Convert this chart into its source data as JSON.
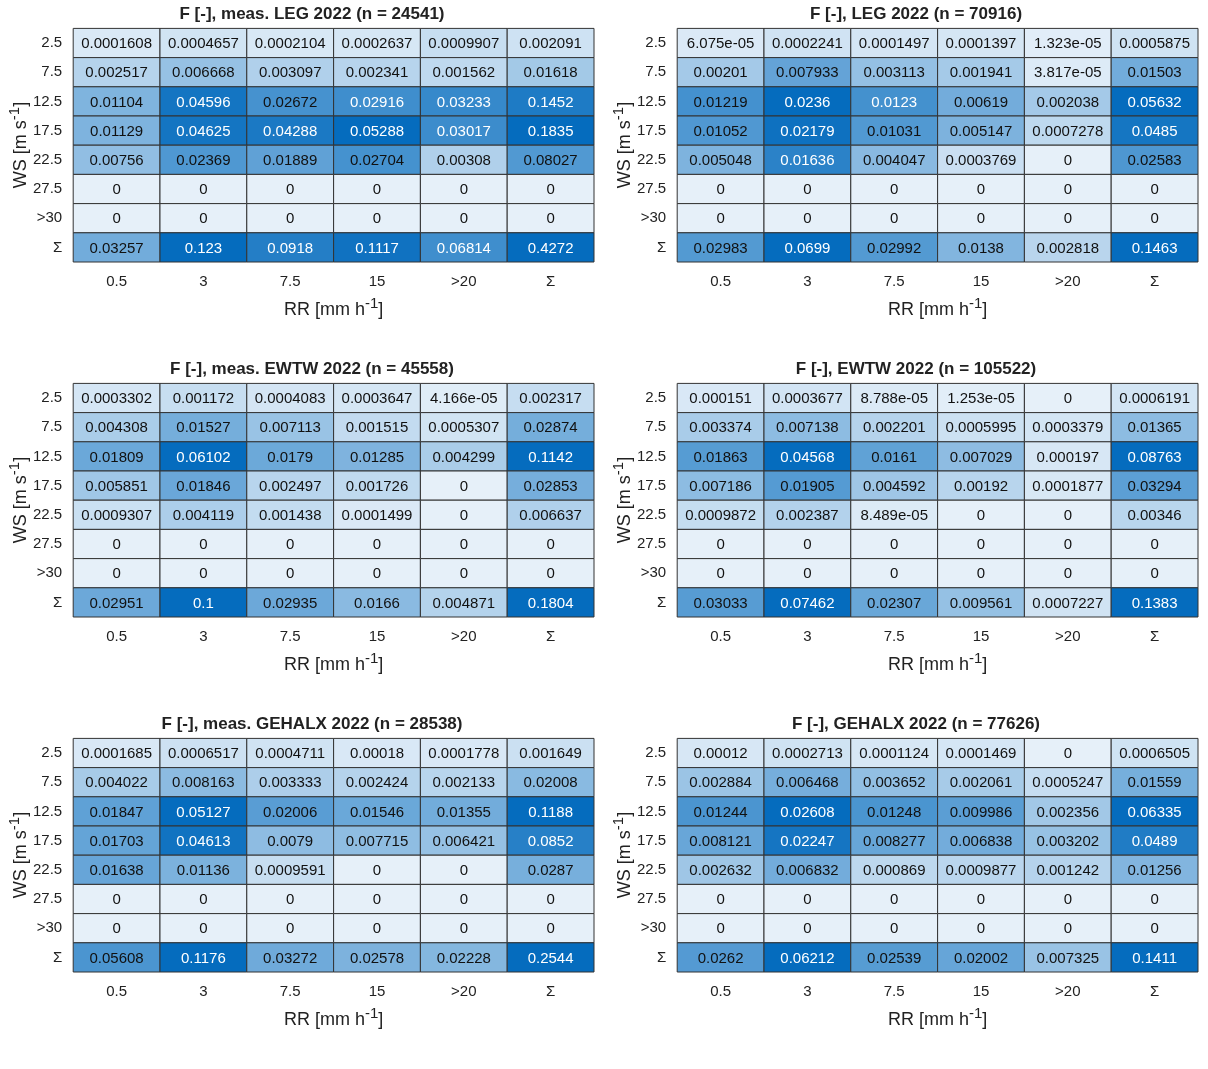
{
  "chart_data": [
    {
      "type": "heatmap",
      "title": "F [-], meas. LEG 2022 (n = 24541)",
      "xlabel": "RR [mm h$^{-1}$]",
      "ylabel": "WS [m s$^{-1}$]",
      "data_labels": true,
      "categories": [
        "0.5",
        "3",
        "7.5",
        "15",
        ">20",
        "Σ"
      ],
      "y_categories": [
        "2.5",
        "7.5",
        "12.5",
        "17.5",
        "22.5",
        "27.5",
        ">30",
        "Σ"
      ],
      "cells": [
        [
          0.0001608,
          0.0004657,
          0.0002104,
          0.0002637,
          0.0009907,
          0.002091
        ],
        [
          0.002517,
          0.006668,
          0.003097,
          0.002341,
          0.001562,
          0.01618
        ],
        [
          0.01104,
          0.04596,
          0.02672,
          0.02916,
          0.03233,
          0.1452
        ],
        [
          0.01129,
          0.04625,
          0.04288,
          0.05288,
          0.03017,
          0.1835
        ],
        [
          0.00756,
          0.02369,
          0.01889,
          0.02704,
          0.00308,
          0.08027
        ],
        [
          0,
          0,
          0,
          0,
          0,
          0
        ],
        [
          0,
          0,
          0,
          0,
          0,
          0
        ],
        [
          0.03257,
          0.123,
          0.0918,
          0.1117,
          0.06814,
          0.4272
        ]
      ]
    },
    {
      "type": "heatmap",
      "title": "F [-], LEG 2022 (n = 70916)",
      "xlabel": "RR [mm h$^{-1}$]",
      "ylabel": "WS [m s$^{-1}$]",
      "data_labels": true,
      "categories": [
        "0.5",
        "3",
        "7.5",
        "15",
        ">20",
        "Σ"
      ],
      "y_categories": [
        "2.5",
        "7.5",
        "12.5",
        "17.5",
        "22.5",
        "27.5",
        ">30",
        "Σ"
      ],
      "cells": [
        [
          6.075e-05,
          0.0002241,
          0.0001497,
          0.0001397,
          1.323e-05,
          0.0005875
        ],
        [
          0.00201,
          0.007933,
          0.003113,
          0.001941,
          3.817e-05,
          0.01503
        ],
        [
          0.01219,
          0.0236,
          0.0123,
          0.00619,
          0.002038,
          0.05632
        ],
        [
          0.01052,
          0.02179,
          0.01031,
          0.005147,
          0.0007278,
          0.0485
        ],
        [
          0.005048,
          0.01636,
          0.004047,
          0.0003769,
          0,
          0.02583
        ],
        [
          0,
          0,
          0,
          0,
          0,
          0
        ],
        [
          0,
          0,
          0,
          0,
          0,
          0
        ],
        [
          0.02983,
          0.0699,
          0.02992,
          0.0138,
          0.002818,
          0.1463
        ]
      ],
      "cell_labels": [
        [
          "6.075e-05",
          "0.0002241",
          "0.0001497",
          "0.0001397",
          "1.323e-05",
          "0.0005875"
        ],
        [
          "0.00201",
          "0.007933",
          "0.003113",
          "0.001941",
          "3.817e-05",
          "0.01503"
        ],
        [
          "0.01219",
          "0.0236",
          "0.0123",
          "0.00619",
          "0.002038",
          "0.05632"
        ],
        [
          "0.01052",
          "0.02179",
          "0.01031",
          "0.005147",
          "0.0007278",
          "0.0485"
        ],
        [
          "0.005048",
          "0.01636",
          "0.004047",
          "0.0003769",
          "0",
          "0.02583"
        ],
        [
          "0",
          "0",
          "0",
          "0",
          "0",
          "0"
        ],
        [
          "0",
          "0",
          "0",
          "0",
          "0",
          "0"
        ],
        [
          "0.02983",
          "0.0699",
          "0.02992",
          "0.0138",
          "0.002818",
          "0.1463"
        ]
      ]
    },
    {
      "type": "heatmap",
      "title": "F [-], meas. EWTW 2022 (n = 45558)",
      "xlabel": "RR [mm h$^{-1}$]",
      "ylabel": "WS [m s$^{-1}$]",
      "data_labels": true,
      "categories": [
        "0.5",
        "3",
        "7.5",
        "15",
        ">20",
        "Σ"
      ],
      "y_categories": [
        "2.5",
        "7.5",
        "12.5",
        "17.5",
        "22.5",
        "27.5",
        ">30",
        "Σ"
      ],
      "cells": [
        [
          0.0003302,
          0.001172,
          0.0004083,
          0.0003647,
          4.166e-05,
          0.002317
        ],
        [
          0.004308,
          0.01527,
          0.007113,
          0.001515,
          0.0005307,
          0.02874
        ],
        [
          0.01809,
          0.06102,
          0.0179,
          0.01285,
          0.004299,
          0.1142
        ],
        [
          0.005851,
          0.01846,
          0.002497,
          0.001726,
          0,
          0.02853
        ],
        [
          0.0009307,
          0.004119,
          0.001438,
          0.0001499,
          0,
          0.006637
        ],
        [
          0,
          0,
          0,
          0,
          0,
          0
        ],
        [
          0,
          0,
          0,
          0,
          0,
          0
        ],
        [
          0.02951,
          0.1,
          0.02935,
          0.0166,
          0.004871,
          0.1804
        ]
      ],
      "cell_labels": [
        [
          "0.0003302",
          "0.001172",
          "0.0004083",
          "0.0003647",
          "4.166e-05",
          "0.002317"
        ],
        [
          "0.004308",
          "0.01527",
          "0.007113",
          "0.001515",
          "0.0005307",
          "0.02874"
        ],
        [
          "0.01809",
          "0.06102",
          "0.0179",
          "0.01285",
          "0.004299",
          "0.1142"
        ],
        [
          "0.005851",
          "0.01846",
          "0.002497",
          "0.001726",
          "0",
          "0.02853"
        ],
        [
          "0.0009307",
          "0.004119",
          "0.001438",
          "0.0001499",
          "0",
          "0.006637"
        ],
        [
          "0",
          "0",
          "0",
          "0",
          "0",
          "0"
        ],
        [
          "0",
          "0",
          "0",
          "0",
          "0",
          "0"
        ],
        [
          "0.02951",
          "0.1",
          "0.02935",
          "0.0166",
          "0.004871",
          "0.1804"
        ]
      ]
    },
    {
      "type": "heatmap",
      "title": "F [-], EWTW 2022 (n = 105522)",
      "xlabel": "RR [mm h$^{-1}$]",
      "ylabel": "WS [m s$^{-1}$]",
      "data_labels": true,
      "categories": [
        "0.5",
        "3",
        "7.5",
        "15",
        ">20",
        "Σ"
      ],
      "y_categories": [
        "2.5",
        "7.5",
        "12.5",
        "17.5",
        "22.5",
        "27.5",
        ">30",
        "Σ"
      ],
      "cells": [
        [
          0.000151,
          0.0003677,
          8.788e-05,
          1.253e-05,
          0,
          0.0006191
        ],
        [
          0.003374,
          0.007138,
          0.002201,
          0.0005995,
          0.0003379,
          0.01365
        ],
        [
          0.01863,
          0.04568,
          0.0161,
          0.007029,
          0.000197,
          0.08763
        ],
        [
          0.007186,
          0.01905,
          0.004592,
          0.00192,
          0.0001877,
          0.03294
        ],
        [
          0.0009872,
          0.002387,
          8.489e-05,
          0,
          0,
          0.00346
        ],
        [
          0,
          0,
          0,
          0,
          0,
          0
        ],
        [
          0,
          0,
          0,
          0,
          0,
          0
        ],
        [
          0.03033,
          0.07462,
          0.02307,
          0.009561,
          0.0007227,
          0.1383
        ]
      ],
      "cell_labels": [
        [
          "0.000151",
          "0.0003677",
          "8.788e-05",
          "1.253e-05",
          "0",
          "0.0006191"
        ],
        [
          "0.003374",
          "0.007138",
          "0.002201",
          "0.0005995",
          "0.0003379",
          "0.01365"
        ],
        [
          "0.01863",
          "0.04568",
          "0.0161",
          "0.007029",
          "0.000197",
          "0.08763"
        ],
        [
          "0.007186",
          "0.01905",
          "0.004592",
          "0.00192",
          "0.0001877",
          "0.03294"
        ],
        [
          "0.0009872",
          "0.002387",
          "8.489e-05",
          "0",
          "0",
          "0.00346"
        ],
        [
          "0",
          "0",
          "0",
          "0",
          "0",
          "0"
        ],
        [
          "0",
          "0",
          "0",
          "0",
          "0",
          "0"
        ],
        [
          "0.03033",
          "0.07462",
          "0.02307",
          "0.009561",
          "0.0007227",
          "0.1383"
        ]
      ]
    },
    {
      "type": "heatmap",
      "title": "F [-], meas. GEHALX 2022 (n = 28538)",
      "xlabel": "RR [mm h$^{-1}$]",
      "ylabel": "WS [m s$^{-1}$]",
      "data_labels": true,
      "categories": [
        "0.5",
        "3",
        "7.5",
        "15",
        ">20",
        "Σ"
      ],
      "y_categories": [
        "2.5",
        "7.5",
        "12.5",
        "17.5",
        "22.5",
        "27.5",
        ">30",
        "Σ"
      ],
      "cells": [
        [
          0.0001685,
          0.0006517,
          0.0004711,
          0.00018,
          0.0001778,
          0.001649
        ],
        [
          0.004022,
          0.008163,
          0.003333,
          0.002424,
          0.002133,
          0.02008
        ],
        [
          0.01847,
          0.05127,
          0.02006,
          0.01546,
          0.01355,
          0.1188
        ],
        [
          0.01703,
          0.04613,
          0.0079,
          0.007715,
          0.006421,
          0.0852
        ],
        [
          0.01638,
          0.01136,
          0.0009591,
          0,
          0,
          0.0287
        ],
        [
          0,
          0,
          0,
          0,
          0,
          0
        ],
        [
          0,
          0,
          0,
          0,
          0,
          0
        ],
        [
          0.05608,
          0.1176,
          0.03272,
          0.02578,
          0.02228,
          0.2544
        ]
      ]
    },
    {
      "type": "heatmap",
      "title": "F [-], GEHALX 2022 (n = 77626)",
      "xlabel": "RR [mm h$^{-1}$]",
      "ylabel": "WS [m s$^{-1}$]",
      "data_labels": true,
      "categories": [
        "0.5",
        "3",
        "7.5",
        "15",
        ">20",
        "Σ"
      ],
      "y_categories": [
        "2.5",
        "7.5",
        "12.5",
        "17.5",
        "22.5",
        "27.5",
        ">30",
        "Σ"
      ],
      "cells": [
        [
          0.00012,
          0.0002713,
          0.0001124,
          0.0001469,
          0,
          0.0006505
        ],
        [
          0.002884,
          0.006468,
          0.003652,
          0.002061,
          0.0005247,
          0.01559
        ],
        [
          0.01244,
          0.02608,
          0.01248,
          0.009986,
          0.002356,
          0.06335
        ],
        [
          0.008121,
          0.02247,
          0.008277,
          0.006838,
          0.003202,
          0.0489
        ],
        [
          0.002632,
          0.006832,
          0.000869,
          0.0009877,
          0.001242,
          0.01256
        ],
        [
          0,
          0,
          0,
          0,
          0,
          0
        ],
        [
          0,
          0,
          0,
          0,
          0,
          0
        ],
        [
          0.0262,
          0.06212,
          0.02539,
          0.02002,
          0.007325,
          0.1411
        ]
      ]
    }
  ]
}
